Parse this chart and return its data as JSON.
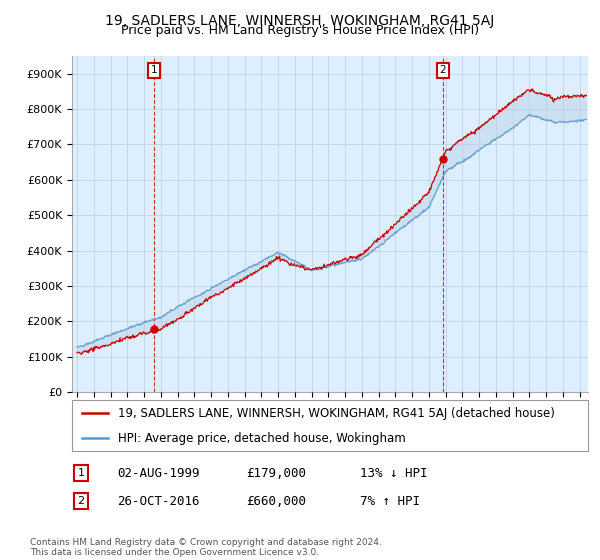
{
  "title": "19, SADLERS LANE, WINNERSH, WOKINGHAM, RG41 5AJ",
  "subtitle": "Price paid vs. HM Land Registry's House Price Index (HPI)",
  "ylim": [
    0,
    950000
  ],
  "yticks": [
    0,
    100000,
    200000,
    300000,
    400000,
    500000,
    600000,
    700000,
    800000,
    900000
  ],
  "ytick_labels": [
    "£0",
    "£100K",
    "£200K",
    "£300K",
    "£400K",
    "£500K",
    "£600K",
    "£700K",
    "£800K",
    "£900K"
  ],
  "background_color": "#ffffff",
  "plot_bg_color": "#ddeeff",
  "grid_color": "#bbccdd",
  "line_color_hpi": "#5599cc",
  "line_color_price": "#cc0000",
  "fill_color": "#c8ddf0",
  "purchase1_date": 1999.58,
  "purchase1_price": 179000,
  "purchase1_label": "1",
  "purchase2_date": 2016.83,
  "purchase2_price": 660000,
  "purchase2_label": "2",
  "legend_line1": "19, SADLERS LANE, WINNERSH, WOKINGHAM, RG41 5AJ (detached house)",
  "legend_line2": "HPI: Average price, detached house, Wokingham",
  "annotation1_date": "02-AUG-1999",
  "annotation1_price": "£179,000",
  "annotation1_rel": "13% ↓ HPI",
  "annotation2_date": "26-OCT-2016",
  "annotation2_price": "£660,000",
  "annotation2_rel": "7% ↑ HPI",
  "footer": "Contains HM Land Registry data © Crown copyright and database right 2024.\nThis data is licensed under the Open Government Licence v3.0.",
  "title_fontsize": 10,
  "subtitle_fontsize": 9,
  "tick_fontsize": 8,
  "legend_fontsize": 8.5,
  "annotation_fontsize": 9
}
